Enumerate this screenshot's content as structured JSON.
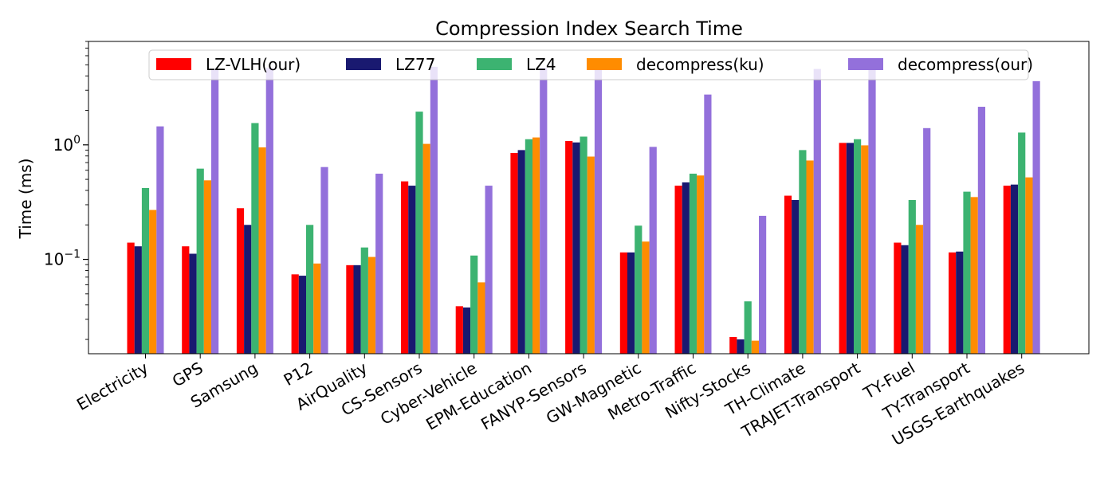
{
  "chart_data": {
    "type": "bar",
    "title": "Compression Index Search Time",
    "ylabel": "Time (ms)",
    "xlabel": "",
    "yscale": "log",
    "ylim": [
      0.015,
      8.0
    ],
    "yticks": [
      {
        "value": 0.1,
        "base": "10",
        "exp": "−1"
      },
      {
        "value": 1.0,
        "base": "10",
        "exp": "0"
      }
    ],
    "legend_position": "top",
    "categories": [
      "Electricity",
      "GPS",
      "Samsung",
      "P12",
      "AirQuality",
      "CS-Sensors",
      "Cyber-Vehicle",
      "EPM-Education",
      "FANYP-Sensors",
      "GW-Magnetic",
      "Metro-Traffic",
      "Nifty-Stocks",
      "TH-Climate",
      "TRAJET-Transport",
      "TY-Fuel",
      "TY-Transport",
      "USGS-Earthquakes"
    ],
    "series": [
      {
        "name": "LZ-VLH(our)",
        "color": "#ff0000",
        "values": [
          0.14,
          0.13,
          0.28,
          0.074,
          0.089,
          0.48,
          0.039,
          0.85,
          1.08,
          0.115,
          0.44,
          0.021,
          0.36,
          1.04,
          0.14,
          0.115,
          0.44
        ]
      },
      {
        "name": "LZ77",
        "color": "#191970",
        "values": [
          0.13,
          0.112,
          0.2,
          0.072,
          0.089,
          0.44,
          0.038,
          0.9,
          1.05,
          0.115,
          0.47,
          0.02,
          0.33,
          1.04,
          0.133,
          0.117,
          0.45
        ]
      },
      {
        "name": "LZ4",
        "color": "#3cb371",
        "values": [
          0.42,
          0.62,
          1.55,
          0.2,
          0.127,
          1.95,
          0.108,
          1.12,
          1.18,
          0.197,
          0.56,
          0.043,
          0.9,
          1.12,
          0.33,
          0.39,
          1.28
        ]
      },
      {
        "name": "decompress(ku)",
        "color": "#ff8c00",
        "values": [
          0.27,
          0.49,
          0.95,
          0.092,
          0.105,
          1.02,
          0.063,
          1.16,
          0.79,
          0.143,
          0.54,
          0.0195,
          0.73,
          0.99,
          0.2,
          0.35,
          0.52
        ]
      },
      {
        "name": "decompress(our)",
        "color": "#9370db",
        "values": [
          1.45,
          4.6,
          4.7,
          0.64,
          0.56,
          4.8,
          0.44,
          4.7,
          4.7,
          0.96,
          2.75,
          0.24,
          4.6,
          5.3,
          1.4,
          2.15,
          3.6
        ]
      }
    ]
  }
}
